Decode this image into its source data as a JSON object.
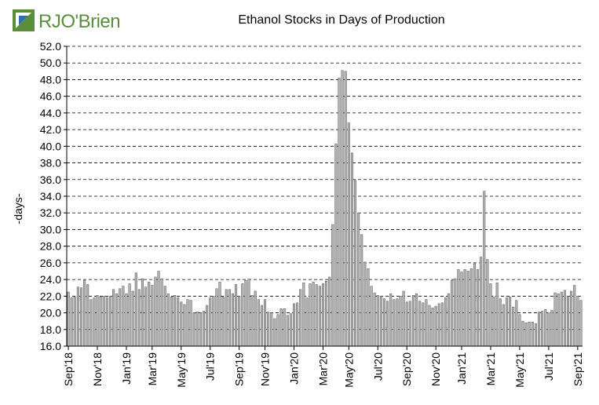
{
  "brand": {
    "name": "RJO'Brien",
    "colors": {
      "green": "#5a8e3a",
      "blue": "#2f6fa8"
    },
    "icon": "rjo-logo-icon"
  },
  "chart_data": {
    "type": "bar",
    "title": "Ethanol Stocks in Days of Production",
    "ylabel": "-days-",
    "xlabel": "",
    "ylim": [
      16.0,
      52.0
    ],
    "yticks": [
      "16.0",
      "18.0",
      "20.0",
      "22.0",
      "24.0",
      "26.0",
      "28.0",
      "30.0",
      "32.0",
      "34.0",
      "36.0",
      "38.0",
      "40.0",
      "42.0",
      "44.0",
      "46.0",
      "48.0",
      "50.0",
      "52.0"
    ],
    "xtick_labels": [
      {
        "label": "Sep'18",
        "index": 0
      },
      {
        "label": "Nov'18",
        "index": 9
      },
      {
        "label": "Jan'19",
        "index": 18
      },
      {
        "label": "Mar'19",
        "index": 26
      },
      {
        "label": "May'19",
        "index": 35
      },
      {
        "label": "Jul'19",
        "index": 44
      },
      {
        "label": "Sep'19",
        "index": 53
      },
      {
        "label": "Nov'19",
        "index": 61
      },
      {
        "label": "Jan'20",
        "index": 70
      },
      {
        "label": "Mar'20",
        "index": 79
      },
      {
        "label": "May'20",
        "index": 87
      },
      {
        "label": "Jul'20",
        "index": 96
      },
      {
        "label": "Sep'20",
        "index": 105
      },
      {
        "label": "Nov'20",
        "index": 114
      },
      {
        "label": "Jan'21",
        "index": 122
      },
      {
        "label": "Mar'21",
        "index": 131
      },
      {
        "label": "May'21",
        "index": 140
      },
      {
        "label": "Jul'21",
        "index": 149
      },
      {
        "label": "Sep'21",
        "index": 158
      }
    ],
    "grid": true,
    "bar_color": "#b4b4b4",
    "values": [
      22.5,
      21.8,
      21.9,
      23.1,
      23.0,
      23.9,
      23.4,
      21.6,
      21.8,
      22.1,
      21.9,
      22.0,
      21.8,
      22.0,
      22.8,
      22.3,
      22.9,
      23.2,
      22.3,
      23.5,
      22.6,
      24.8,
      22.8,
      24.1,
      23.1,
      23.7,
      23.3,
      24.3,
      25.0,
      24.1,
      23.2,
      22.3,
      21.9,
      22.1,
      21.8,
      21.3,
      21.0,
      21.6,
      21.5,
      20.0,
      20.1,
      20.0,
      20.2,
      20.9,
      21.8,
      22.0,
      22.9,
      23.7,
      21.9,
      22.8,
      22.8,
      22.3,
      23.4,
      22.0,
      23.5,
      23.9,
      24.1,
      22.1,
      22.6,
      21.6,
      20.9,
      21.6,
      20.1,
      20.0,
      19.3,
      19.8,
      20.5,
      20.5,
      19.7,
      19.9,
      21.1,
      21.2,
      22.8,
      23.6,
      21.8,
      23.5,
      23.7,
      23.4,
      23.2,
      23.5,
      23.8,
      24.3,
      30.6,
      40.3,
      48.2,
      49.1,
      49.0,
      42.8,
      39.2,
      35.9,
      32.0,
      29.4,
      26.1,
      25.3,
      23.2,
      22.4,
      22.1,
      22.0,
      21.7,
      21.4,
      22.3,
      21.6,
      21.7,
      22.0,
      22.6,
      21.3,
      21.4,
      22.1,
      22.3,
      21.4,
      21.2,
      21.6,
      20.9,
      20.6,
      20.8,
      21.1,
      21.2,
      21.8,
      22.3,
      23.9,
      24.1,
      25.2,
      24.9,
      25.2,
      25.0,
      25.3,
      25.9,
      25.2,
      26.7,
      34.6,
      26.4,
      23.5,
      21.9,
      23.6,
      21.7,
      21.0,
      21.8,
      21.9,
      20.7,
      21.5,
      19.8,
      19.0,
      18.8,
      18.9,
      18.9,
      18.7,
      20.1,
      20.2,
      20.4,
      20.0,
      20.3,
      22.4,
      22.3,
      22.5,
      22.7,
      22.0,
      22.6,
      23.3,
      22.0,
      21.5
    ]
  }
}
